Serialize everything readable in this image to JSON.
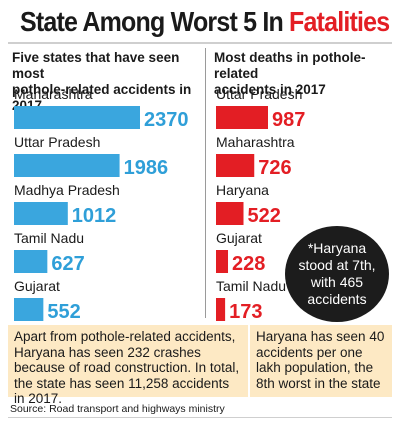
{
  "title": {
    "main": "State Among Worst 5 In",
    "highlight": "Fatalities"
  },
  "chart_data": [
    {
      "type": "bar",
      "title": "Five states that have seen most pothole-related accidents in 2017",
      "title_lines": [
        "Five states that have seen most",
        "pothole-related accidents in 2017"
      ],
      "categories": [
        "Maharashtra",
        "Uttar Pradesh",
        "Madhya Pradesh",
        "Tamil Nadu",
        "Gujarat"
      ],
      "values": [
        2370,
        1986,
        1012,
        627,
        552
      ],
      "color": "#3aa6de",
      "value_color": "#2f9fd8"
    },
    {
      "type": "bar",
      "title": "Most deaths in pothole-related accidents in 2017",
      "title_lines": [
        "Most deaths in pothole-related",
        "accidents in 2017"
      ],
      "categories": [
        "Uttar Pradesh",
        "Maharashtra",
        "Haryana",
        "Gujarat",
        "Tamil Nadu"
      ],
      "values": [
        987,
        726,
        522,
        228,
        173
      ],
      "color": "#e31e24",
      "value_color": "#e31e24"
    }
  ],
  "callout": "*Haryana stood at 7th, with 465 accidents",
  "notes": {
    "left": "Apart from pothole-related accidents, Haryana has seen 232 crashes because of road construction. In total, the state has seen 11,258 accidents in 2017.",
    "right": "Haryana has seen 40 accidents per one lakh population, the 8th worst in the state"
  },
  "source": "Source: Road transport and highways ministry"
}
